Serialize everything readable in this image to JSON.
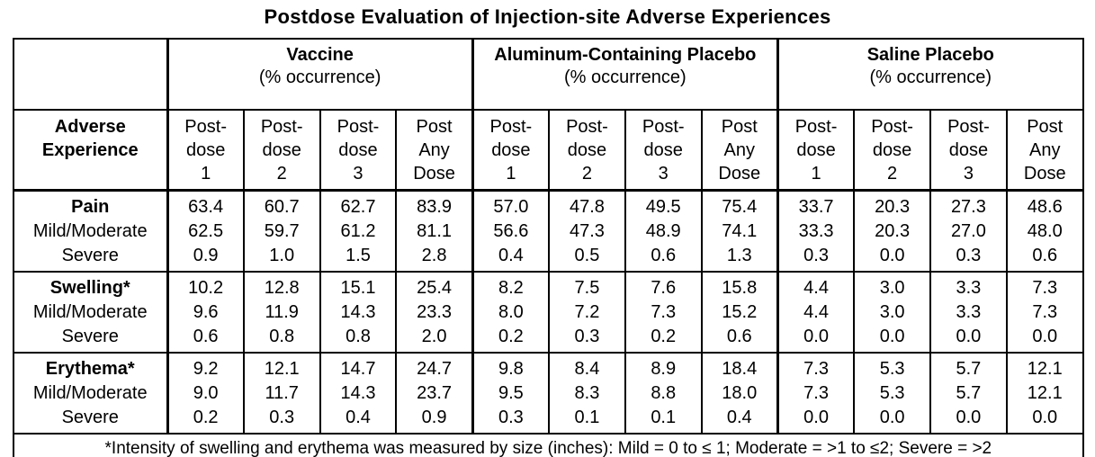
{
  "title": "Postdose Evaluation of Injection-site Adverse Experiences",
  "table": {
    "row_header": [
      "Adverse",
      "Experience"
    ],
    "groups": [
      {
        "name": "Vaccine",
        "subtitle": "(% occurrence)"
      },
      {
        "name": "Aluminum-Containing Placebo",
        "subtitle": "(% occurrence)"
      },
      {
        "name": "Saline Placebo",
        "subtitle": "(% occurrence)"
      }
    ],
    "dose_headers": [
      [
        "Post-",
        "dose",
        "1"
      ],
      [
        "Post-",
        "dose",
        "2"
      ],
      [
        "Post-",
        "dose",
        "3"
      ],
      [
        "Post",
        "Any",
        "Dose"
      ]
    ],
    "sections": [
      {
        "name": "Pain",
        "rows": [
          {
            "label": "Pain",
            "bold": true,
            "values": [
              "63.4",
              "60.7",
              "62.7",
              "83.9",
              "57.0",
              "47.8",
              "49.5",
              "75.4",
              "33.7",
              "20.3",
              "27.3",
              "48.6"
            ]
          },
          {
            "label": "Mild/Moderate",
            "bold": false,
            "values": [
              "62.5",
              "59.7",
              "61.2",
              "81.1",
              "56.6",
              "47.3",
              "48.9",
              "74.1",
              "33.3",
              "20.3",
              "27.0",
              "48.0"
            ]
          },
          {
            "label": "Severe",
            "bold": false,
            "values": [
              "0.9",
              "1.0",
              "1.5",
              "2.8",
              "0.4",
              "0.5",
              "0.6",
              "1.3",
              "0.3",
              "0.0",
              "0.3",
              "0.6"
            ]
          }
        ]
      },
      {
        "name": "Swelling",
        "rows": [
          {
            "label": "Swelling*",
            "bold": true,
            "values": [
              "10.2",
              "12.8",
              "15.1",
              "25.4",
              "8.2",
              "7.5",
              "7.6",
              "15.8",
              "4.4",
              "3.0",
              "3.3",
              "7.3"
            ]
          },
          {
            "label": "Mild/Moderate",
            "bold": false,
            "values": [
              "9.6",
              "11.9",
              "14.3",
              "23.3",
              "8.0",
              "7.2",
              "7.3",
              "15.2",
              "4.4",
              "3.0",
              "3.3",
              "7.3"
            ]
          },
          {
            "label": "Severe",
            "bold": false,
            "values": [
              "0.6",
              "0.8",
              "0.8",
              "2.0",
              "0.2",
              "0.3",
              "0.2",
              "0.6",
              "0.0",
              "0.0",
              "0.0",
              "0.0"
            ]
          }
        ]
      },
      {
        "name": "Erythema",
        "rows": [
          {
            "label": "Erythema*",
            "bold": true,
            "values": [
              "9.2",
              "12.1",
              "14.7",
              "24.7",
              "9.8",
              "8.4",
              "8.9",
              "18.4",
              "7.3",
              "5.3",
              "5.7",
              "12.1"
            ]
          },
          {
            "label": "Mild/Moderate",
            "bold": false,
            "values": [
              "9.0",
              "11.7",
              "14.3",
              "23.7",
              "9.5",
              "8.3",
              "8.8",
              "18.0",
              "7.3",
              "5.3",
              "5.7",
              "12.1"
            ]
          },
          {
            "label": "Severe",
            "bold": false,
            "values": [
              "0.2",
              "0.3",
              "0.4",
              "0.9",
              "0.3",
              "0.1",
              "0.1",
              "0.4",
              "0.0",
              "0.0",
              "0.0",
              "0.0"
            ]
          }
        ]
      }
    ],
    "footnote": "*Intensity of swelling and erythema was measured by size (inches): Mild = 0 to ≤ 1; Moderate = >1 to ≤2; Severe = >2"
  }
}
